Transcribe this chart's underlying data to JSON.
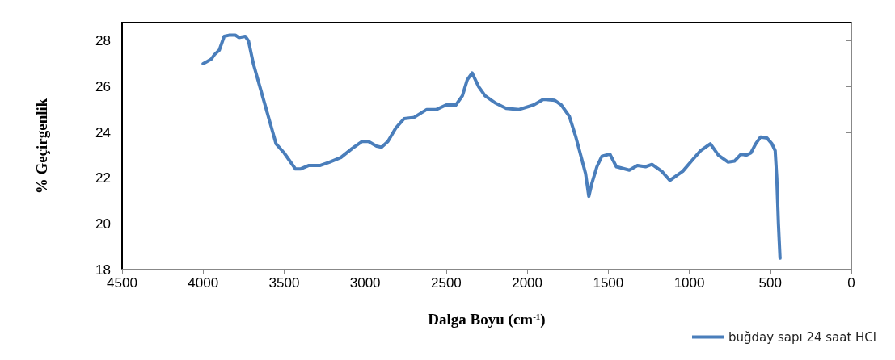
{
  "chart_data": {
    "type": "line",
    "xlabel": "Dalga Boyu (cm$^{-1}$)",
    "ylabel": "% Geçirgenlik",
    "xlim": [
      4500,
      0
    ],
    "xticks": [
      4500,
      4000,
      3500,
      3000,
      2500,
      2000,
      1500,
      1000,
      500,
      0
    ],
    "ylim": [
      18,
      28.8
    ],
    "yticks": [
      18,
      20,
      22,
      24,
      26,
      28
    ],
    "grid": false,
    "legend": "bottom right",
    "marker": "none",
    "line_style": "solid",
    "series": [
      {
        "name": "buğday sapı 24 saat HCl",
        "color": "#4a7ebb",
        "x": [
          4000,
          3950,
          3930,
          3900,
          3870,
          3840,
          3800,
          3780,
          3740,
          3720,
          3690,
          3650,
          3610,
          3570,
          3550,
          3500,
          3470,
          3430,
          3400,
          3350,
          3280,
          3220,
          3150,
          3080,
          3020,
          2980,
          2930,
          2900,
          2860,
          2810,
          2760,
          2700,
          2620,
          2560,
          2500,
          2440,
          2400,
          2370,
          2340,
          2300,
          2260,
          2200,
          2130,
          2050,
          1960,
          1900,
          1830,
          1790,
          1740,
          1700,
          1670,
          1640,
          1620,
          1600,
          1570,
          1540,
          1490,
          1450,
          1370,
          1320,
          1270,
          1230,
          1170,
          1120,
          1070,
          1040,
          980,
          930,
          890,
          870,
          820,
          760,
          720,
          680,
          650,
          620,
          590,
          560,
          520,
          490,
          470,
          460,
          450,
          440
        ],
        "values": [
          27.0,
          27.2,
          27.4,
          27.6,
          28.2,
          28.25,
          28.25,
          28.15,
          28.2,
          28.0,
          27.0,
          26.0,
          25.0,
          24.0,
          23.5,
          23.1,
          22.8,
          22.4,
          22.4,
          22.55,
          22.55,
          22.7,
          22.9,
          23.3,
          23.6,
          23.6,
          23.4,
          23.35,
          23.6,
          24.2,
          24.6,
          24.65,
          25.0,
          25.0,
          25.2,
          25.2,
          25.6,
          26.3,
          26.6,
          26.0,
          25.6,
          25.3,
          25.05,
          25.0,
          25.2,
          25.45,
          25.4,
          25.2,
          24.7,
          23.8,
          23.0,
          22.2,
          21.2,
          21.8,
          22.5,
          22.95,
          23.05,
          22.5,
          22.35,
          22.55,
          22.5,
          22.6,
          22.3,
          21.9,
          22.15,
          22.3,
          22.8,
          23.2,
          23.4,
          23.5,
          23.0,
          22.7,
          22.75,
          23.05,
          23.0,
          23.1,
          23.5,
          23.8,
          23.75,
          23.5,
          23.2,
          22.0,
          20.0,
          18.5
        ]
      }
    ]
  }
}
